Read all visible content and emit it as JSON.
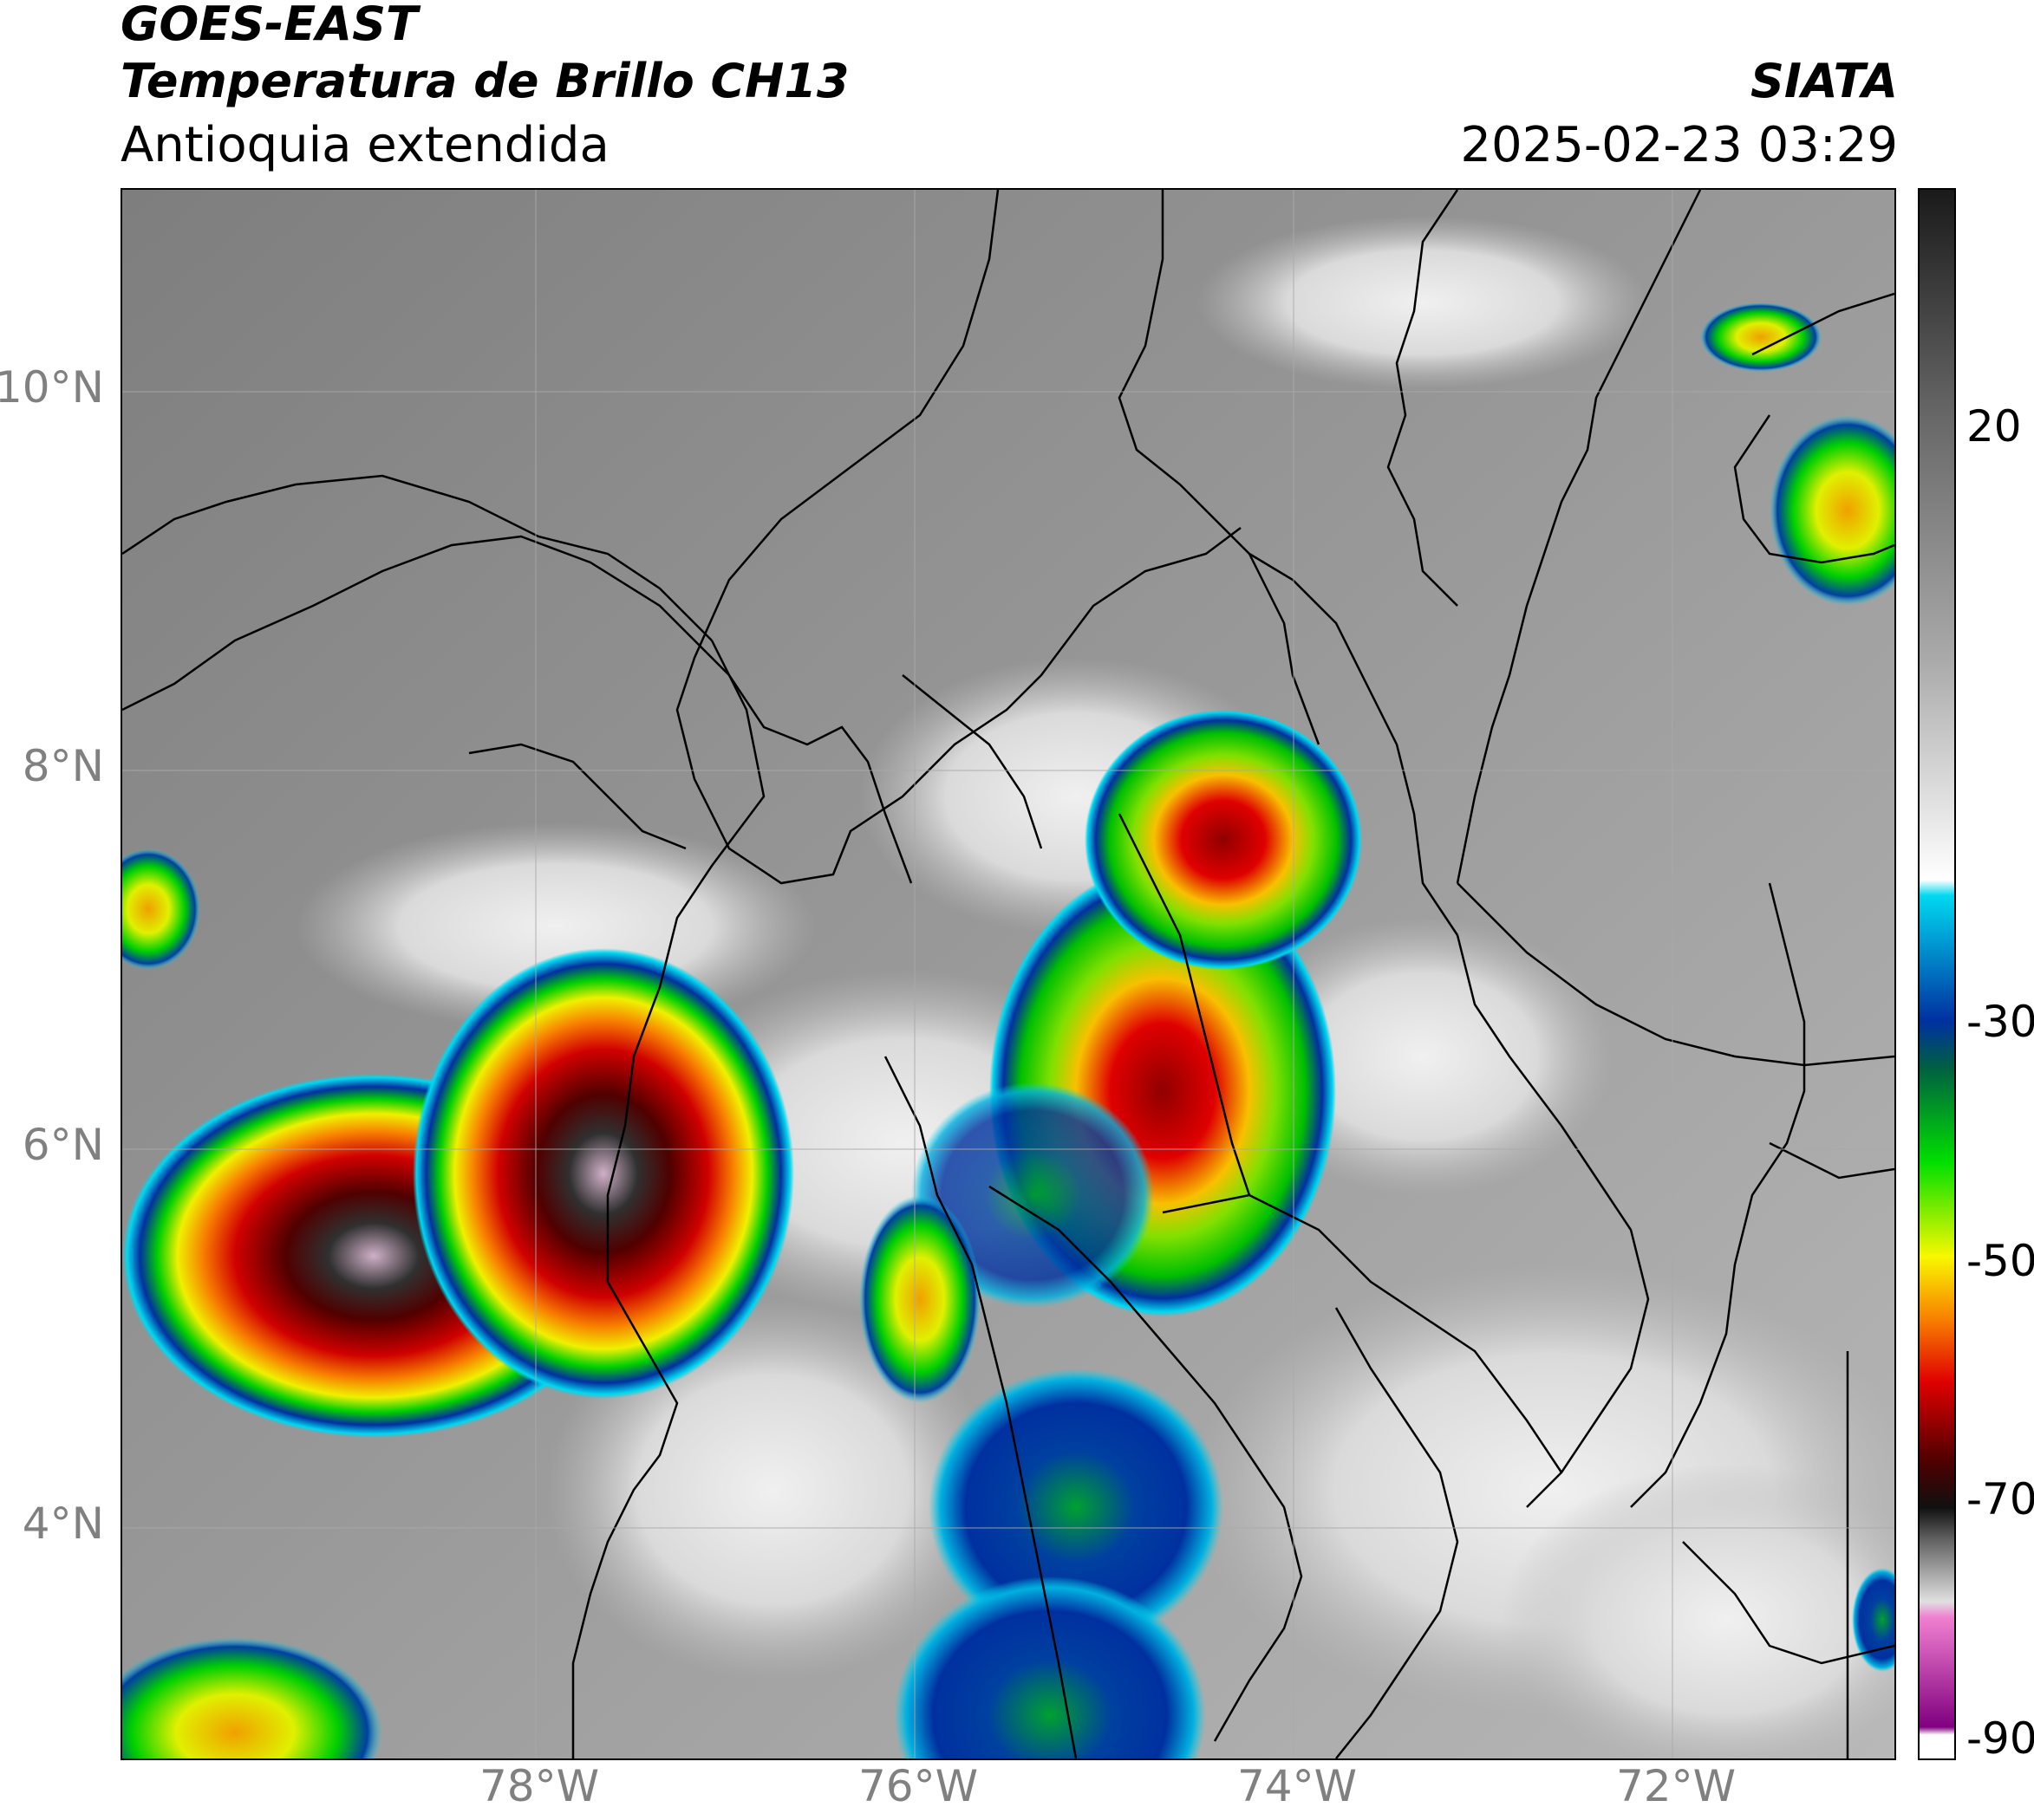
{
  "header": {
    "satellite": "GOES-EAST",
    "product": "Temperatura de Brillo CH13",
    "region": "Antioquia extendida",
    "organization": "SIATA",
    "timestamp": "2025-02-23 03:29"
  },
  "map": {
    "lat_ticks": [
      "10°N",
      "8°N",
      "6°N",
      "4°N"
    ],
    "lon_ticks": [
      "78°W",
      "76°W",
      "74°W",
      "72°W"
    ],
    "extent": {
      "lon_min": -80.2,
      "lon_max": -70.8,
      "lat_min": 2.6,
      "lat_max": 11.1
    }
  },
  "colorbar": {
    "tick_labels": [
      "20",
      "-30",
      "-50",
      "-70",
      "-90"
    ],
    "range": [
      -90,
      28
    ],
    "colors": {
      "gray_warm": "#1a1a1a",
      "gray_cold": "#ffffff",
      "cyan": "#00d8f0",
      "blue": "#0030a0",
      "dark_green": "#006040",
      "green": "#00e000",
      "yellow": "#f8f800",
      "orange": "#f88000",
      "red": "#e00000",
      "dark_red": "#500000",
      "black": "#101010",
      "light_gray": "#e0e0e0",
      "pink": "#f080d0",
      "purple": "#800080"
    }
  }
}
